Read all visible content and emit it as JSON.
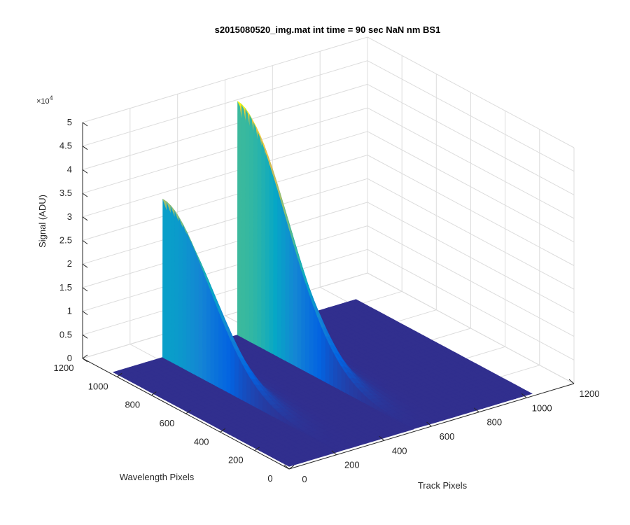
{
  "chart_data": {
    "type": "surface",
    "title": "s2015080520_img.mat int time = 90 sec  NaN nm BS1",
    "xlabel": "Track Pixels",
    "ylabel": "Wavelength Pixels",
    "zlabel": "Signal (ADU)",
    "z_exponent_label": "×10",
    "z_exponent_power": "4",
    "xlim": [
      0,
      1200
    ],
    "ylim": [
      0,
      1200
    ],
    "zlim": [
      0,
      5
    ],
    "x_ticks": [
      "0",
      "200",
      "400",
      "600",
      "800",
      "1000",
      "1200"
    ],
    "y_ticks": [
      "0",
      "200",
      "400",
      "600",
      "800",
      "1000",
      "1200"
    ],
    "z_ticks": [
      "0",
      "0.5",
      "1",
      "1.5",
      "2",
      "2.5",
      "3",
      "3.5",
      "4",
      "4.5",
      "5"
    ],
    "grid": true,
    "colormap": [
      "#352a87",
      "#0363e1",
      "#1485d4",
      "#06a7c6",
      "#38b99e",
      "#92bf73",
      "#d9ba56",
      "#fcce2e",
      "#f9fb0e"
    ],
    "data_extent": {
      "x": [
        1,
        1024
      ],
      "y": [
        1,
        1024
      ]
    },
    "background_level": 0.05,
    "peaks": [
      {
        "track_center": 210,
        "peak_signal": 3.35,
        "peak_wavelength": 1024,
        "decay_wavelength_pixels": 380
      },
      {
        "track_center": 525,
        "peak_signal": 4.95,
        "peak_wavelength": 1024,
        "decay_wavelength_pixels": 400
      }
    ]
  }
}
